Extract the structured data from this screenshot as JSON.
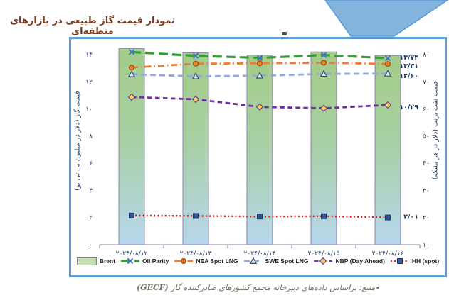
{
  "page": {
    "title": "نمودار قیمت گاز طبیعی در بازارهای منطقه‌ای",
    "footer_text": "٭منبع: براساس داده‌های دبیرخانه مجمع کشورهای صادرکننده گاز",
    "footer_source": "(GECF)"
  },
  "colors": {
    "box_border": "#5B9BD5",
    "funnel": "#82B4DE",
    "title_text": "#7A3B1E",
    "axis_line": "#9183A9",
    "tick_text": "#17375E",
    "bar_top": "#A3CC88",
    "bar_bottom": "#B7D7ED",
    "bar_border": "#8A84A8"
  },
  "chart_data": {
    "type": "combo-bar-line",
    "categories": [
      "۲۰۲۴/۰۸/۱۲",
      "۲۰۲۴/۰۸/۱۳",
      "۲۰۲۴/۰۸/۱۴",
      "۲۰۲۴/۰۸/۱۵",
      "۲۰۲۴/۰۸/۱۶"
    ],
    "bar_series": {
      "name": "Brent",
      "axis": "right",
      "values": [
        82.3,
        80.7,
        79.8,
        81.0,
        79.7
      ]
    },
    "line_series": [
      {
        "name": "Oil Parity",
        "axis": "left",
        "values": [
          14.19,
          13.91,
          13.76,
          13.97,
          13.74
        ],
        "color": "#34A037",
        "width": 3.2,
        "dash": "13 6",
        "marker": {
          "shape": "x",
          "stroke": "#4472C4"
        },
        "end_label": "۱۳/۷۴",
        "label_color": "#4EA72E",
        "label_dy": -1
      },
      {
        "name": "NEA Spot LNG",
        "axis": "left",
        "values": [
          13.05,
          13.33,
          13.36,
          13.4,
          13.31
        ],
        "color": "#ED7D31",
        "width": 2.8,
        "dash": "9 4 1.5 4",
        "marker": {
          "shape": "circle",
          "fill": "#ED7D31",
          "stroke": "#984807"
        },
        "end_label": "۱۳/۳۱",
        "label_color": "#C55A11",
        "label_dy": 3
      },
      {
        "name": "SWE Spot LNG",
        "axis": "left",
        "values": [
          12.55,
          12.4,
          12.45,
          12.58,
          12.6
        ],
        "color": "#8FAADC",
        "width": 2.8,
        "dash": "8 5",
        "marker": {
          "shape": "triangle",
          "fill": "#DCE9F7",
          "stroke": "#31506D"
        },
        "end_label": "۱۲/۶۰",
        "label_color": "#4472C4",
        "label_dy": 3
      },
      {
        "name": "NBP (Day Ahead)",
        "axis": "left",
        "values": [
          10.87,
          10.71,
          10.15,
          10.05,
          10.29
        ],
        "color": "#7030A0",
        "width": 2.8,
        "dash": "6.5 4.5",
        "marker": {
          "shape": "diamond",
          "fill": "#FFD34D",
          "stroke": "#6A3D9A"
        },
        "end_label": "۱۰/۲۹",
        "label_color": "#7030A0",
        "label_dy": 3
      },
      {
        "name": "HH (spot)",
        "axis": "left",
        "values": [
          2.15,
          2.12,
          2.08,
          2.1,
          2.01
        ],
        "color": "#E00000",
        "width": 2.4,
        "dash": "1.8 3.4",
        "marker": {
          "shape": "square",
          "fill": "#2F5597",
          "stroke": "#1B3864"
        },
        "end_label": "۲/۰۱",
        "label_color": "#C00000",
        "label_dy": -1
      }
    ],
    "left_axis": {
      "title": "قیمت گاز (دلار در میلیون بی تی یو)",
      "min": 0,
      "max": 14,
      "tick_step": 2,
      "ticks": [
        "۰",
        "۲",
        "۴",
        "۶",
        "۸",
        "۱۰",
        "۱۲",
        "۱۴"
      ]
    },
    "right_axis": {
      "title": "قیمت نفت برنت (دلار در هر بشکه)",
      "min": 10,
      "max": 80,
      "tick_step": 10,
      "ticks": [
        "۱۰",
        "۲۰",
        "۳۰",
        "۴۰",
        "۵۰",
        "۶۰",
        "۷۰",
        "۸۰"
      ]
    },
    "legend": [
      "Brent",
      "Oil Parity",
      "NEA Spot LNG",
      "SWE Spot LNG",
      "NBP (Day Ahead)",
      "HH (spot)"
    ],
    "grid": false,
    "legend_position": "bottom"
  }
}
